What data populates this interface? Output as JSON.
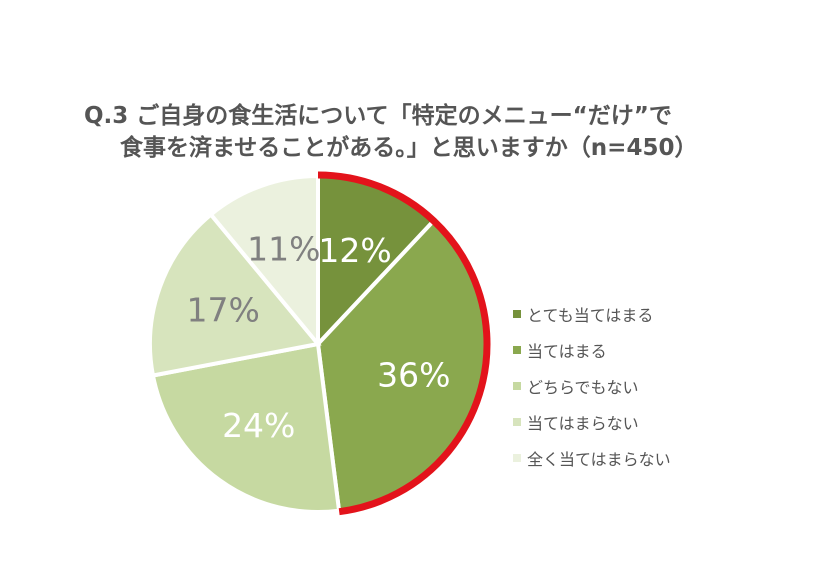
{
  "title": {
    "line1": "Q.3 ご自身の食生活について「特定のメニュー“だけ”で",
    "line2": "食事を済ませることがある。」と思いますか（n=450）"
  },
  "chart_data": {
    "type": "pie",
    "categories": [
      "とても当てはまる",
      "当てはまる",
      "どちらでもない",
      "当てはまらない",
      "全く当てはまらない"
    ],
    "values": [
      12,
      36,
      24,
      17,
      11
    ],
    "labels": [
      "12%",
      "36%",
      "24%",
      "17%",
      "11%"
    ],
    "colors": [
      "#76923c",
      "#8aa84e",
      "#c6d9a1",
      "#d7e4bd",
      "#ebf1de"
    ],
    "label_colors": [
      "#ffffff",
      "#ffffff",
      "#ffffff",
      "#808080",
      "#808080"
    ],
    "highlight": {
      "categories": [
        "とても当てはまる",
        "当てはまる"
      ],
      "color": "#e3131b"
    },
    "legend_position": "right"
  }
}
